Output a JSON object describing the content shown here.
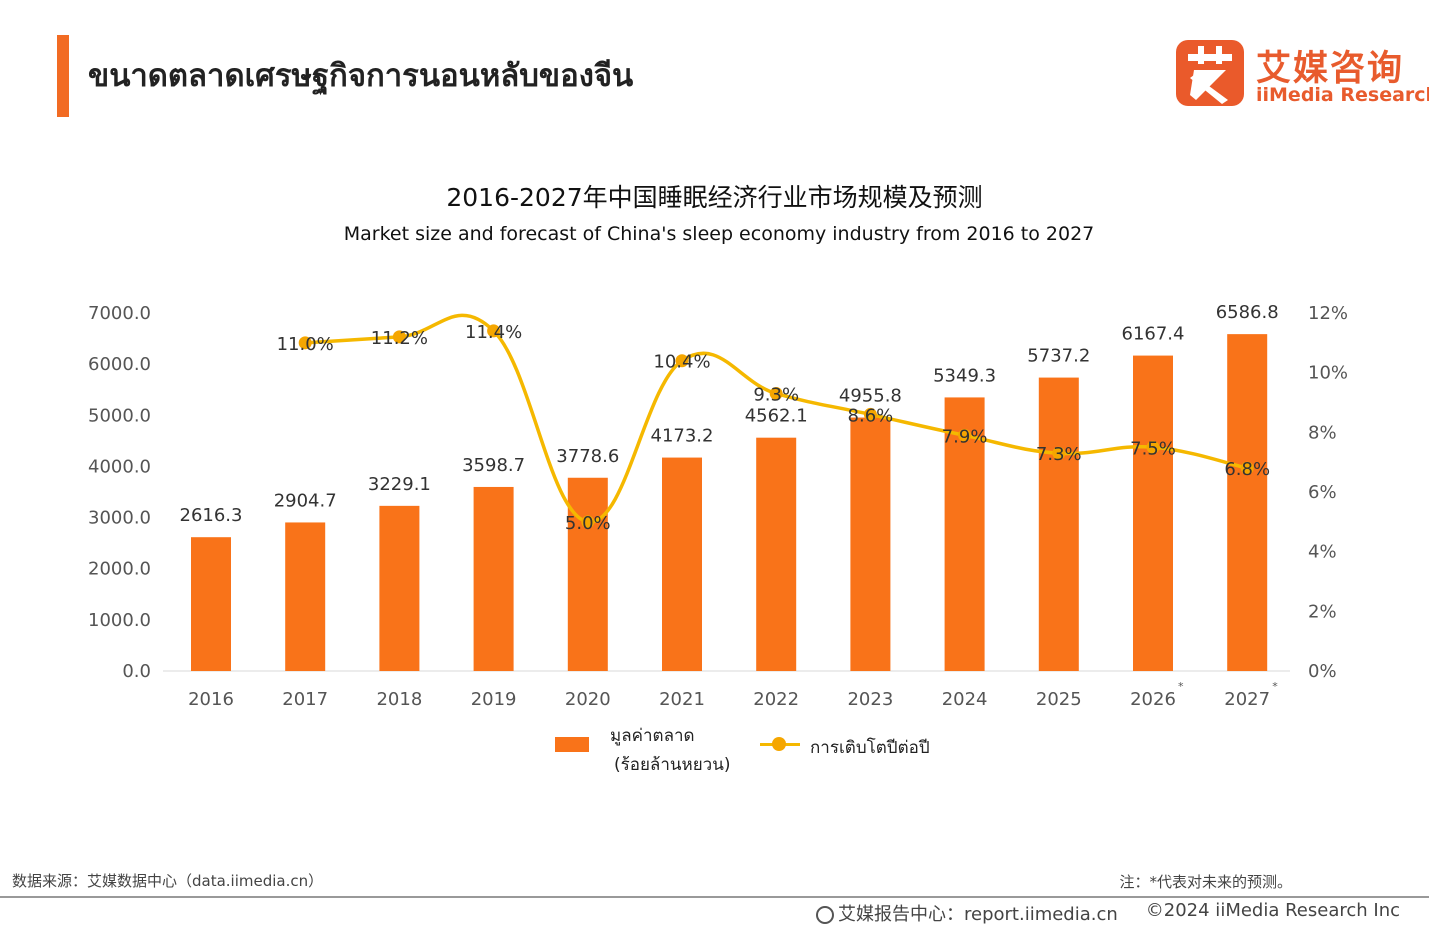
{
  "header": {
    "title": "ขนาดตลาดเศรษฐกิจการนอนหลับของจีน",
    "accent_color": "#f26b23"
  },
  "logo": {
    "cn": "艾媒咨询",
    "en": "iiMedia Research",
    "mark": "艾",
    "color": "#e85b2d"
  },
  "chart_data": {
    "type": "bar",
    "title": "2016-2027年中国睡眠经济行业市场规模及预测",
    "subtitle": "Market size and forecast of China's sleep economy industry from 2016 to 2027",
    "categories": [
      "2016",
      "2017",
      "2018",
      "2019",
      "2020",
      "2021",
      "2022",
      "2023",
      "2024",
      "2025",
      "2026",
      "2027"
    ],
    "forecast_marker": "*",
    "forecast_categories": [
      "2026",
      "2027"
    ],
    "series": [
      {
        "name": "มูลค่าตลาด (ร้อยล้านหยวน)",
        "type": "bar",
        "axis": "left",
        "color": "#f97319",
        "values": [
          2616.3,
          2904.7,
          3229.1,
          3598.7,
          3778.6,
          4173.2,
          4562.1,
          4955.8,
          5349.3,
          5737.2,
          6167.4,
          6586.8
        ],
        "labels": [
          "2616.3",
          "2904.7",
          "3229.1",
          "3598.7",
          "3778.6",
          "4173.2",
          "4562.1",
          "4955.8",
          "5349.3",
          "5737.2",
          "6167.4",
          "6586.8"
        ]
      },
      {
        "name": "การเติบโตปีต่อปี",
        "type": "line",
        "axis": "right",
        "color": "#f5b800",
        "values": [
          null,
          11.0,
          11.2,
          11.4,
          5.0,
          10.4,
          9.3,
          8.6,
          7.9,
          7.3,
          7.5,
          6.8
        ],
        "labels": [
          "",
          "11.0%",
          "11.2%",
          "11.4%",
          "5.0%",
          "10.4%",
          "9.3%",
          "8.6%",
          "7.9%",
          "7.3%",
          "7.5%",
          "6.8%"
        ]
      }
    ],
    "y_left": {
      "min": 0,
      "max": 7000,
      "ticks": [
        "0.0",
        "1000.0",
        "2000.0",
        "3000.0",
        "4000.0",
        "5000.0",
        "6000.0",
        "7000.0"
      ]
    },
    "y_right": {
      "min": 0,
      "max": 12,
      "ticks": [
        "0%",
        "2%",
        "4%",
        "6%",
        "8%",
        "10%",
        "12%"
      ]
    },
    "grid": false,
    "legend_position": "bottom"
  },
  "legend": {
    "bar_label_line1": "มูลค่าตลาด",
    "bar_label_line2": "(ร้อยล้านหยวน)",
    "line_label": "การเติบโตปีต่อปี"
  },
  "source": "数据来源：艾媒数据中心（data.iimedia.cn）",
  "note": "注：*代表对未来的预测。",
  "footer": {
    "left": "艾媒报告中心：report.iimedia.cn",
    "right": "©2024  iiMedia Research Inc"
  }
}
